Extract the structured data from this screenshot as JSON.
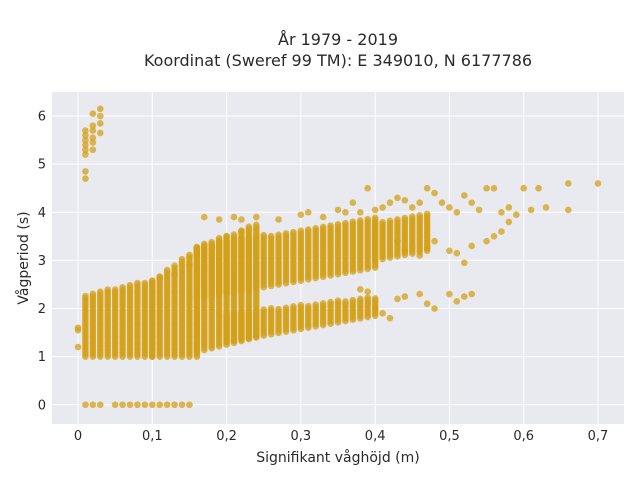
{
  "chart_data": {
    "type": "scatter",
    "title": [
      "År 1979 - 2019",
      "Koordinat (Sweref 99 TM): E 349010, N 6177786"
    ],
    "xlabel": "Signifikant våghöjd (m)",
    "ylabel": "Vågperiod (s)",
    "xlim": [
      -0.035,
      0.735
    ],
    "ylim": [
      -0.4,
      6.5
    ],
    "xticks": [
      0,
      0.1,
      0.2,
      0.3,
      0.4,
      0.5,
      0.6,
      0.7
    ],
    "xtick_labels": [
      "0",
      "0,1",
      "0,2",
      "0,3",
      "0,4",
      "0,5",
      "0,6",
      "0,7"
    ],
    "yticks": [
      0,
      1,
      2,
      3,
      4,
      5,
      6
    ],
    "ytick_labels": [
      "0",
      "1",
      "2",
      "3",
      "4",
      "5",
      "6"
    ],
    "grid": true,
    "background": "#e9e9f0",
    "marker_color": "#d4a017",
    "marker_opacity": 0.75,
    "series": [
      {
        "points": [
          [
            0.0,
            1.55
          ],
          [
            0.0,
            1.2
          ],
          [
            0.0,
            1.6
          ],
          [
            0.01,
            4.7
          ],
          [
            0.01,
            4.85
          ],
          [
            0.01,
            5.2
          ],
          [
            0.01,
            5.3
          ],
          [
            0.01,
            5.4
          ],
          [
            0.01,
            5.5
          ],
          [
            0.01,
            5.6
          ],
          [
            0.01,
            5.7
          ],
          [
            0.02,
            5.3
          ],
          [
            0.02,
            5.45
          ],
          [
            0.02,
            5.55
          ],
          [
            0.02,
            5.7
          ],
          [
            0.02,
            5.8
          ],
          [
            0.02,
            6.05
          ],
          [
            0.03,
            5.65
          ],
          [
            0.03,
            5.85
          ],
          [
            0.03,
            6.0
          ],
          [
            0.03,
            6.15
          ],
          [
            0.01,
            0.0
          ],
          [
            0.02,
            0.0
          ],
          [
            0.03,
            0.0
          ],
          [
            0.05,
            0.0
          ],
          [
            0.06,
            0.0
          ],
          [
            0.07,
            0.0
          ],
          [
            0.08,
            0.0
          ],
          [
            0.09,
            0.0
          ],
          [
            0.1,
            0.0
          ],
          [
            0.11,
            0.0
          ],
          [
            0.12,
            0.0
          ],
          [
            0.13,
            0.0
          ],
          [
            0.14,
            0.0
          ],
          [
            0.15,
            0.0
          ],
          [
            0.17,
            3.9
          ],
          [
            0.19,
            3.85
          ],
          [
            0.21,
            3.9
          ],
          [
            0.22,
            3.85
          ],
          [
            0.24,
            3.9
          ],
          [
            0.27,
            3.85
          ],
          [
            0.3,
            3.95
          ],
          [
            0.31,
            4.0
          ],
          [
            0.33,
            3.9
          ],
          [
            0.35,
            4.05
          ],
          [
            0.36,
            4.0
          ],
          [
            0.37,
            4.2
          ],
          [
            0.38,
            4.0
          ],
          [
            0.39,
            4.5
          ],
          [
            0.4,
            4.05
          ],
          [
            0.41,
            4.1
          ],
          [
            0.42,
            4.2
          ],
          [
            0.43,
            4.3
          ],
          [
            0.44,
            4.25
          ],
          [
            0.45,
            4.1
          ],
          [
            0.46,
            4.2
          ],
          [
            0.47,
            4.5
          ],
          [
            0.48,
            4.4
          ],
          [
            0.49,
            4.2
          ],
          [
            0.5,
            4.1
          ],
          [
            0.51,
            4.0
          ],
          [
            0.52,
            4.35
          ],
          [
            0.53,
            4.2
          ],
          [
            0.54,
            4.05
          ],
          [
            0.55,
            4.5
          ],
          [
            0.56,
            4.5
          ],
          [
            0.57,
            4.0
          ],
          [
            0.58,
            4.1
          ],
          [
            0.59,
            3.95
          ],
          [
            0.6,
            4.5
          ],
          [
            0.61,
            4.05
          ],
          [
            0.62,
            4.5
          ],
          [
            0.63,
            4.1
          ],
          [
            0.66,
            4.6
          ],
          [
            0.66,
            4.05
          ],
          [
            0.7,
            4.6
          ],
          [
            0.43,
            3.4
          ],
          [
            0.44,
            3.2
          ],
          [
            0.45,
            3.3
          ],
          [
            0.46,
            3.1
          ],
          [
            0.47,
            3.25
          ],
          [
            0.48,
            3.4
          ],
          [
            0.5,
            3.2
          ],
          [
            0.51,
            3.15
          ],
          [
            0.52,
            2.95
          ],
          [
            0.53,
            3.3
          ],
          [
            0.55,
            3.4
          ],
          [
            0.56,
            3.5
          ],
          [
            0.57,
            3.6
          ],
          [
            0.58,
            3.8
          ],
          [
            0.38,
            2.4
          ],
          [
            0.39,
            2.35
          ],
          [
            0.4,
            2.0
          ],
          [
            0.41,
            1.9
          ],
          [
            0.42,
            1.8
          ],
          [
            0.43,
            2.2
          ],
          [
            0.44,
            2.25
          ],
          [
            0.46,
            2.3
          ],
          [
            0.47,
            2.1
          ],
          [
            0.48,
            2.0
          ],
          [
            0.5,
            2.3
          ],
          [
            0.51,
            2.15
          ],
          [
            0.52,
            2.25
          ],
          [
            0.53,
            2.3
          ],
          [
            0.11,
            2.65
          ],
          [
            0.13,
            2.7
          ],
          [
            0.15,
            2.9
          ],
          [
            0.16,
            3.05
          ],
          [
            0.18,
            3.25
          ],
          [
            0.19,
            3.4
          ],
          [
            0.2,
            3.5
          ],
          [
            0.22,
            3.6
          ],
          [
            0.23,
            3.7
          ]
        ]
      }
    ],
    "bands": [
      {
        "x": [
          0.01,
          0.1
        ],
        "y_low": [
          1.0,
          1.0
        ],
        "y_high": [
          2.3,
          2.6
        ]
      },
      {
        "x": [
          0.1,
          0.16
        ],
        "y_low": [
          1.0,
          1.0
        ],
        "y_high": [
          2.6,
          3.25
        ]
      },
      {
        "x": [
          0.16,
          0.24
        ],
        "y_low": [
          1.1,
          1.4
        ],
        "y_high": [
          3.3,
          3.75
        ]
      },
      {
        "x": [
          0.16,
          0.4
        ],
        "y_low": [
          2.2,
          2.85
        ],
        "y_high": [
          3.3,
          3.9
        ]
      },
      {
        "x": [
          0.2,
          0.4
        ],
        "y_low": [
          1.3,
          1.85
        ],
        "y_high": [
          1.9,
          2.25
        ]
      },
      {
        "x": [
          0.4,
          0.47
        ],
        "y_low": [
          3.0,
          3.2
        ],
        "y_high": [
          3.8,
          4.0
        ]
      }
    ]
  }
}
